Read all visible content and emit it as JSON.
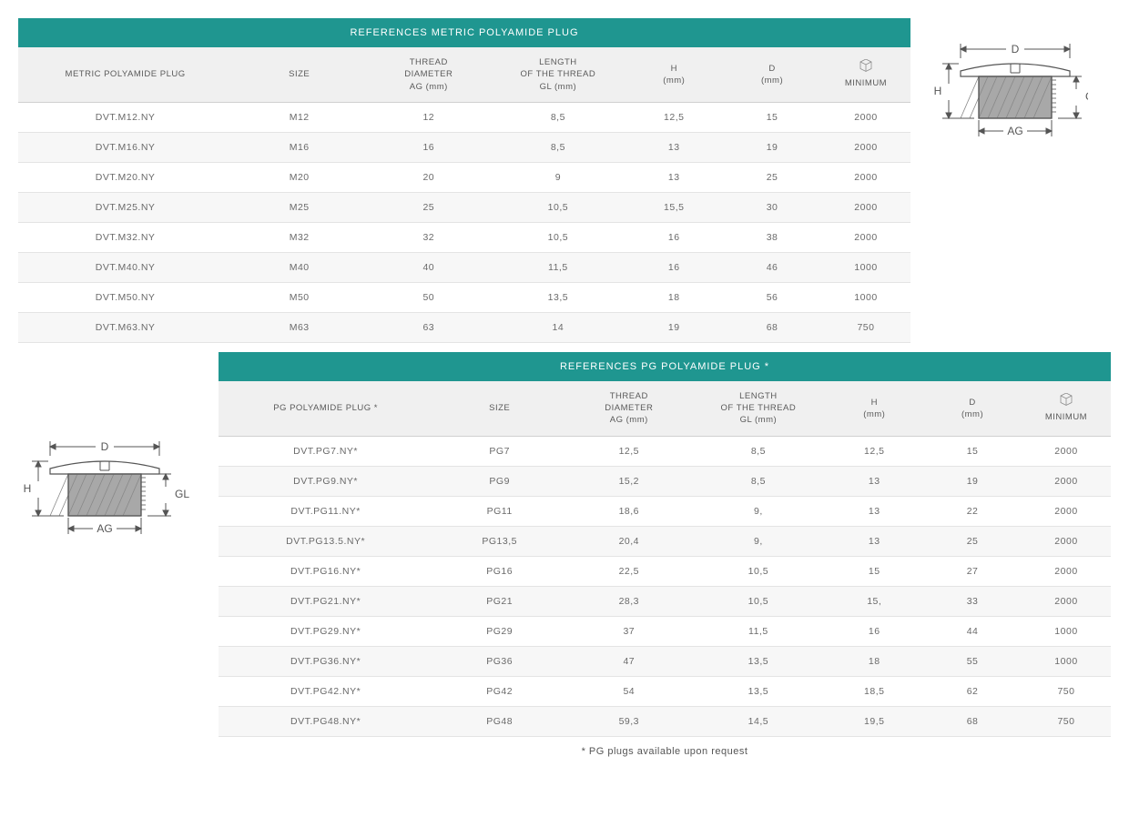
{
  "colors": {
    "header_bg": "#1f9690",
    "header_text": "#ffffff",
    "subhdr_bg": "#f0f0f0",
    "row_alt_bg": "#f7f7f7",
    "border": "#e4e4e4",
    "text": "#6a6a6a"
  },
  "table1": {
    "title": "REFERENCES METRIC POLYAMIDE PLUG",
    "col_widths": [
      "24%",
      "15%",
      "14%",
      "15%",
      "11%",
      "11%",
      "10%"
    ],
    "headers": [
      "METRIC POLYAMIDE PLUG",
      "SIZE",
      "THREAD\nDIAMETER\nAG (mm)",
      "LENGTH\nOF THE THREAD\nGL (mm)",
      "H\n(mm)",
      "D\n(mm)",
      "MINIMUM"
    ],
    "rows": [
      [
        "DVT.M12.NY",
        "M12",
        "12",
        "8,5",
        "12,5",
        "15",
        "2000"
      ],
      [
        "DVT.M16.NY",
        "M16",
        "16",
        "8,5",
        "13",
        "19",
        "2000"
      ],
      [
        "DVT.M20.NY",
        "M20",
        "20",
        "9",
        "13",
        "25",
        "2000"
      ],
      [
        "DVT.M25.NY",
        "M25",
        "25",
        "10,5",
        "15,5",
        "30",
        "2000"
      ],
      [
        "DVT.M32.NY",
        "M32",
        "32",
        "10,5",
        "16",
        "38",
        "2000"
      ],
      [
        "DVT.M40.NY",
        "M40",
        "40",
        "11,5",
        "16",
        "46",
        "1000"
      ],
      [
        "DVT.M50.NY",
        "M50",
        "50",
        "13,5",
        "18",
        "56",
        "1000"
      ],
      [
        "DVT.M63.NY",
        "M63",
        "63",
        "14",
        "19",
        "68",
        "750"
      ]
    ]
  },
  "table2": {
    "title": "REFERENCES PG POLYAMIDE PLUG *",
    "col_widths": [
      "24%",
      "15%",
      "14%",
      "15%",
      "11%",
      "11%",
      "10%"
    ],
    "headers": [
      "PG POLYAMIDE PLUG *",
      "SIZE",
      "THREAD\nDIAMETER\nAG (mm)",
      "LENGTH\nOF THE THREAD\nGL (mm)",
      "H\n(mm)",
      "D\n(mm)",
      "MINIMUM"
    ],
    "rows": [
      [
        "DVT.PG7.NY*",
        "PG7",
        "12,5",
        "8,5",
        "12,5",
        "15",
        "2000"
      ],
      [
        "DVT.PG9.NY*",
        "PG9",
        "15,2",
        "8,5",
        "13",
        "19",
        "2000"
      ],
      [
        "DVT.PG11.NY*",
        "PG11",
        "18,6",
        "9,",
        "13",
        "22",
        "2000"
      ],
      [
        "DVT.PG13.5.NY*",
        "PG13,5",
        "20,4",
        "9,",
        "13",
        "25",
        "2000"
      ],
      [
        "DVT.PG16.NY*",
        "PG16",
        "22,5",
        "10,5",
        "15",
        "27",
        "2000"
      ],
      [
        "DVT.PG21.NY*",
        "PG21",
        "28,3",
        "10,5",
        "15,",
        "33",
        "2000"
      ],
      [
        "DVT.PG29.NY*",
        "PG29",
        "37",
        "11,5",
        "16",
        "44",
        "1000"
      ],
      [
        "DVT.PG36.NY*",
        "PG36",
        "47",
        "13,5",
        "18",
        "55",
        "1000"
      ],
      [
        "DVT.PG42.NY*",
        "PG42",
        "54",
        "13,5",
        "18,5",
        "62",
        "750"
      ],
      [
        "DVT.PG48.NY*",
        "PG48",
        "59,3",
        "14,5",
        "19,5",
        "68",
        "750"
      ]
    ]
  },
  "diagram_labels": {
    "D": "D",
    "H": "H",
    "GL": "GL",
    "AG": "AG"
  },
  "footnote": "* PG plugs available upon request"
}
